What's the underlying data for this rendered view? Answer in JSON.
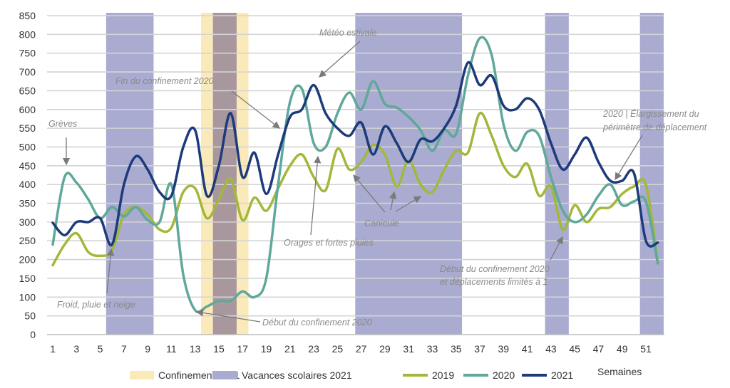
{
  "chart_data": {
    "type": "line",
    "xlabel": "Semaines",
    "ylabel": "",
    "ylim": [
      0,
      850
    ],
    "yticks": [
      0,
      50,
      100,
      150,
      200,
      250,
      300,
      350,
      400,
      450,
      500,
      550,
      600,
      650,
      700,
      750,
      800,
      850
    ],
    "xticks": [
      1,
      3,
      5,
      7,
      9,
      11,
      13,
      15,
      17,
      19,
      21,
      23,
      25,
      27,
      29,
      31,
      33,
      35,
      37,
      39,
      41,
      43,
      45,
      47,
      49,
      51
    ],
    "x": [
      1,
      2,
      3,
      4,
      5,
      6,
      7,
      8,
      9,
      10,
      11,
      12,
      13,
      14,
      15,
      16,
      17,
      18,
      19,
      20,
      21,
      22,
      23,
      24,
      25,
      26,
      27,
      28,
      29,
      30,
      31,
      32,
      33,
      34,
      35,
      36,
      37,
      38,
      39,
      40,
      41,
      42,
      43,
      44,
      45,
      46,
      47,
      48,
      49,
      50,
      51,
      52
    ],
    "grid": true,
    "legend_placement": "bottom",
    "series": [
      {
        "name": "2019",
        "color": "#a3b83a",
        "values": [
          185,
          240,
          270,
          220,
          210,
          225,
          320,
          340,
          320,
          280,
          285,
          380,
          390,
          310,
          360,
          415,
          305,
          365,
          330,
          390,
          450,
          480,
          420,
          385,
          495,
          440,
          460,
          505,
          480,
          395,
          465,
          400,
          380,
          440,
          490,
          485,
          590,
          530,
          450,
          420,
          455,
          370,
          395,
          280,
          345,
          300,
          335,
          340,
          375,
          395,
          400,
          195
        ]
      },
      {
        "name": "2020",
        "color": "#5fa89a",
        "values": [
          240,
          420,
          405,
          360,
          310,
          340,
          315,
          340,
          305,
          300,
          400,
          160,
          65,
          75,
          90,
          90,
          115,
          100,
          150,
          400,
          620,
          655,
          510,
          500,
          590,
          645,
          600,
          675,
          615,
          605,
          580,
          545,
          490,
          545,
          535,
          690,
          790,
          745,
          560,
          490,
          540,
          530,
          420,
          330,
          300,
          320,
          370,
          400,
          345,
          355,
          355,
          190
        ]
      },
      {
        "name": "2021",
        "color": "#1d3a7a",
        "values": [
          298,
          265,
          300,
          300,
          310,
          240,
          400,
          475,
          440,
          380,
          370,
          500,
          545,
          370,
          450,
          590,
          420,
          485,
          375,
          480,
          580,
          600,
          665,
          590,
          550,
          530,
          565,
          480,
          555,
          510,
          460,
          520,
          515,
          550,
          610,
          725,
          665,
          690,
          610,
          600,
          630,
          600,
          510,
          440,
          480,
          525,
          460,
          410,
          410,
          430,
          250,
          245
        ]
      }
    ],
    "bands": [
      {
        "name": "Confinement 2021",
        "color": "#fbeab9",
        "ranges": [
          [
            14,
            17
          ]
        ]
      },
      {
        "name": "Vacances scolaires 2021",
        "color": "#a9abd0",
        "ranges": [
          [
            6,
            9
          ],
          [
            27,
            35
          ],
          [
            43,
            44
          ],
          [
            51,
            52
          ]
        ]
      }
    ],
    "overlap_color": "#a8989e",
    "annotations": [
      {
        "id": "greves",
        "text": "Grèves"
      },
      {
        "id": "froid",
        "text": "Froid, pluie et neige"
      },
      {
        "id": "fin",
        "text": "Fin du confinement 2020"
      },
      {
        "id": "meteo",
        "text": "Météo estivale"
      },
      {
        "id": "debut",
        "text": "Début du confinement 2020"
      },
      {
        "id": "orages",
        "text": "Orages et fortes pluies"
      },
      {
        "id": "canicule",
        "text": "Canicule"
      },
      {
        "id": "debut2a",
        "text": "Début du confinement 2020"
      },
      {
        "id": "debut2b",
        "text": "et déplacements limités à 1"
      },
      {
        "id": "elarg_a",
        "text": "2020 | Élargissement du"
      },
      {
        "id": "elarg_b",
        "text": "périmètre de déplacement"
      }
    ],
    "legend": [
      "Confinement 2021",
      "Vacances scolaires 2021",
      "2019",
      "2020",
      "2021"
    ]
  }
}
